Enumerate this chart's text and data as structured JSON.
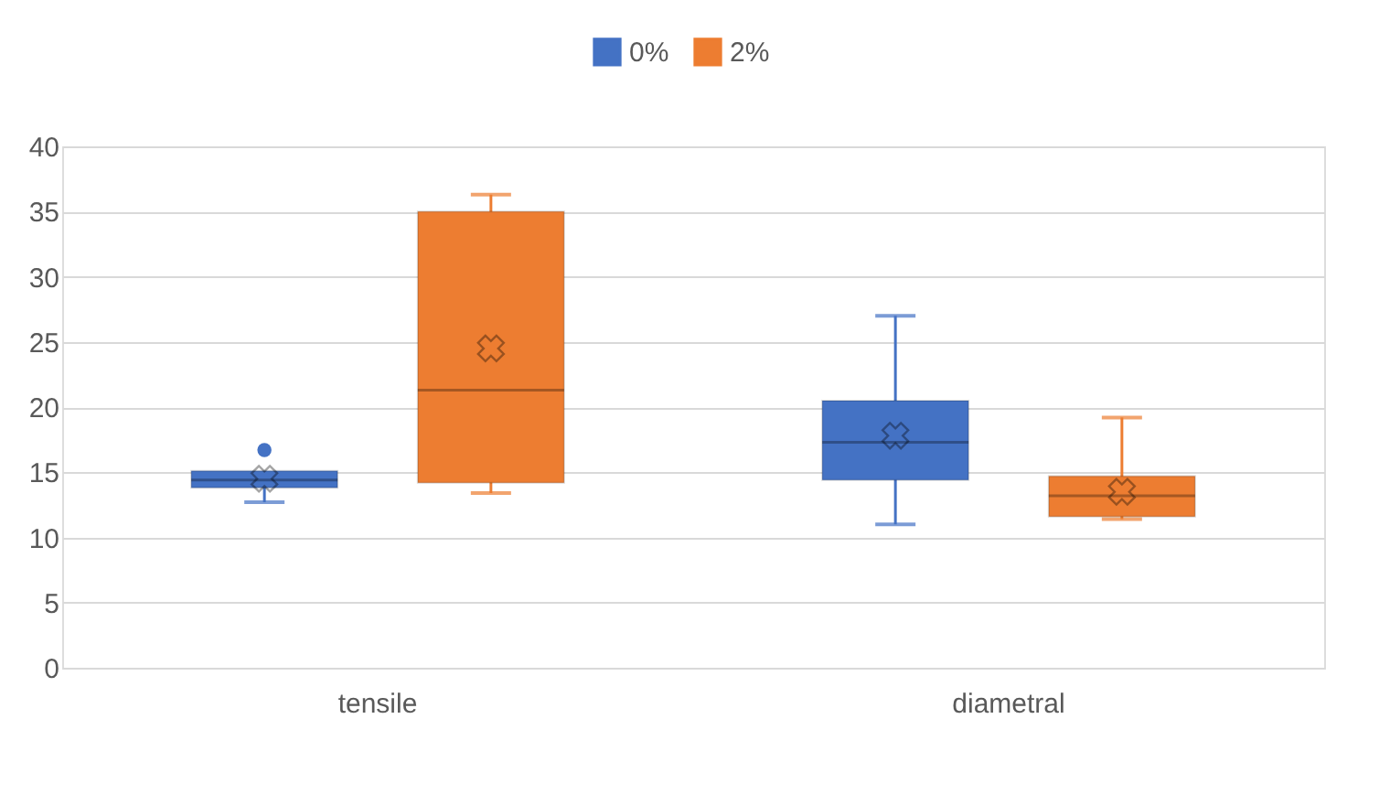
{
  "chart_data": {
    "type": "box",
    "categories": [
      "tensile",
      "diametral"
    ],
    "series": [
      {
        "name": "0%",
        "color": "#4472c4",
        "boxes": [
          {
            "low": 12.7,
            "q1": 13.8,
            "median": 14.4,
            "q3": 15.1,
            "high": 15.1,
            "mean": 14.5,
            "outliers": [
              16.7
            ]
          },
          {
            "low": 11.0,
            "q1": 14.4,
            "median": 17.3,
            "q3": 20.5,
            "high": 27.0,
            "mean": 17.8
          }
        ]
      },
      {
        "name": "2%",
        "color": "#ed7d31",
        "boxes": [
          {
            "low": 13.4,
            "q1": 14.2,
            "median": 21.3,
            "q3": 35.0,
            "high": 36.3,
            "mean": 24.5
          },
          {
            "low": 11.4,
            "q1": 11.6,
            "median": 13.2,
            "q3": 14.7,
            "high": 19.2,
            "mean": 13.5
          }
        ]
      }
    ],
    "ylim": [
      0,
      40
    ],
    "yticks": [
      0,
      5,
      10,
      15,
      20,
      25,
      30,
      35,
      40
    ],
    "grid": "y",
    "legend": "top",
    "marker": "cross"
  }
}
